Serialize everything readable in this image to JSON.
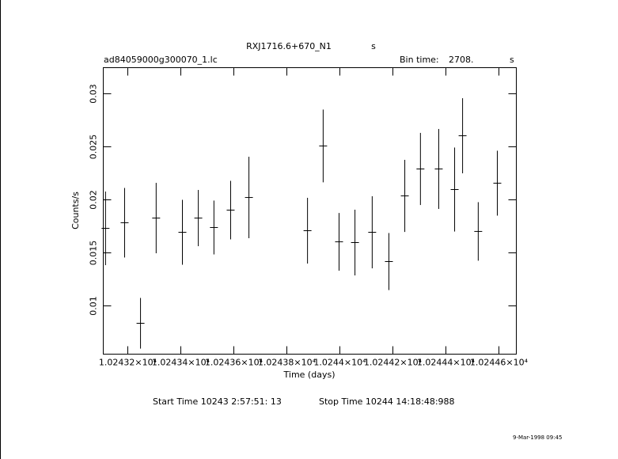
{
  "chart_data": {
    "type": "errorbar",
    "title": "RXJ1716.6+670_N1",
    "title_suffix": "s",
    "file_name": "ad84059000g300070_1.lc",
    "bin_time_label": "Bin time:",
    "bin_time": "2708.",
    "bin_time_unit": "s",
    "xlabel": "Time (days)",
    "ylabel": "Counts/s",
    "start_time": "Start Time 10243  2:57:51: 13",
    "stop_time": "Stop Time 10244 14:18:48:988",
    "footnote": "9-Mar-1998 09:45",
    "color": "#000000",
    "x": [
      10243.116,
      10243.188,
      10243.248,
      10243.307,
      10243.406,
      10243.466,
      10243.525,
      10243.588,
      10243.657,
      10243.878,
      10243.937,
      10243.997,
      10244.057,
      10244.122,
      10244.185,
      10244.245,
      10244.304,
      10244.373,
      10244.433,
      10244.463,
      10244.522,
      10244.594
    ],
    "values": [
      0.01731,
      0.01784,
      0.00836,
      0.01828,
      0.01694,
      0.01828,
      0.01739,
      0.01903,
      0.02022,
      0.01709,
      0.02508,
      0.01604,
      0.01597,
      0.01694,
      0.01418,
      0.02037,
      0.02291,
      0.02291,
      0.02097,
      0.02604,
      0.01702,
      0.02157
    ],
    "errors": [
      0.00347,
      0.00328,
      0.00239,
      0.00332,
      0.00306,
      0.00265,
      0.00254,
      0.00276,
      0.00384,
      0.0031,
      0.00343,
      0.00272,
      0.0031,
      0.0034,
      0.00269,
      0.0034,
      0.0034,
      0.00377,
      0.00396,
      0.00354,
      0.00276,
      0.00306
    ],
    "xlim": [
      10243.1075,
      10244.6657
    ],
    "xticks": [
      {
        "value": 10243.2,
        "label": "1.02432×10⁴"
      },
      {
        "value": 10243.4,
        "label": "1.02434×10⁴"
      },
      {
        "value": 10243.6,
        "label": "1.02436×10⁴"
      },
      {
        "value": 10243.8,
        "label": "1.02438×10⁴"
      },
      {
        "value": 10244,
        "label": "1.0244×10⁴"
      },
      {
        "value": 10244.2,
        "label": "1.02442×10⁴"
      },
      {
        "value": 10244.4,
        "label": "1.02444×10⁴"
      },
      {
        "value": 10244.6,
        "label": "1.02446×10⁴"
      }
    ],
    "ylim": [
      0.00545,
      0.03246
    ],
    "yticks": [
      0.01,
      0.015,
      0.02,
      0.025,
      0.03
    ]
  }
}
